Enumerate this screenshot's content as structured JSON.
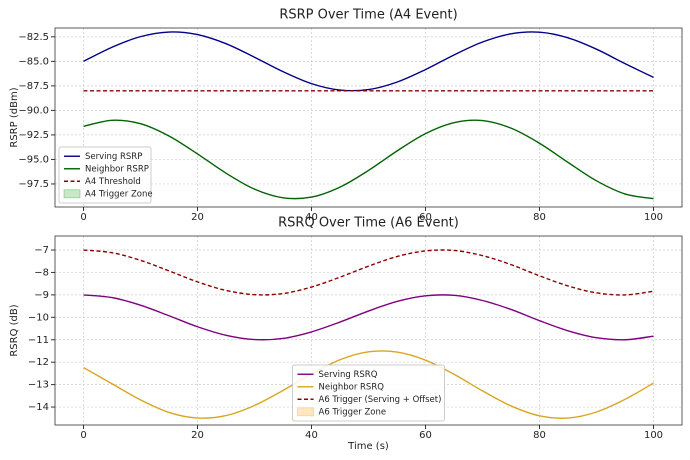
{
  "chart_data": [
    {
      "type": "line",
      "title": "RSRP Over Time (A4 Event)",
      "ylabel": "RSRP (dBm)",
      "x": [
        0,
        5,
        10,
        15,
        20,
        25,
        30,
        35,
        40,
        45,
        50,
        55,
        60,
        65,
        70,
        75,
        80,
        85,
        90,
        95,
        100
      ],
      "series": [
        {
          "name": "Serving RSRP",
          "color": "#00008b",
          "style": "solid",
          "values": [
            -85,
            -83.56,
            -82.48,
            -82.01,
            -82.27,
            -83.2,
            -84.58,
            -86.05,
            -87.27,
            -87.93,
            -87.88,
            -87.12,
            -85.84,
            -84.35,
            -83.03,
            -82.19,
            -82.03,
            -82.6,
            -83.76,
            -85.23,
            -86.63
          ]
        },
        {
          "name": "Neighbor RSRP",
          "color": "#006400",
          "style": "solid",
          "values": [
            -91.63,
            -91.01,
            -91.36,
            -92.61,
            -94.44,
            -96.4,
            -98.03,
            -98.91,
            -98.84,
            -97.82,
            -96.12,
            -94.14,
            -92.37,
            -91.25,
            -91.04,
            -91.81,
            -93.35,
            -95.3,
            -97.18,
            -98.52,
            -99
          ]
        },
        {
          "name": "A4 Threshold",
          "color": "#8b0000",
          "style": "dashed",
          "values": [
            -88,
            -88,
            -88,
            -88,
            -88,
            -88,
            -88,
            -88,
            -88,
            -88,
            -88,
            -88,
            -88,
            -88,
            -88,
            -88,
            -88,
            -88,
            -88,
            -88,
            -88
          ]
        }
      ],
      "zones": [
        {
          "name": "A4 Trigger Zone",
          "color": "#2ca02c"
        }
      ],
      "xlim": [
        -5,
        105
      ],
      "xticks": [
        0,
        20,
        40,
        60,
        80,
        100
      ],
      "ylim": [
        -99.85,
        -81.6
      ],
      "yticks": [
        {
          "value": -82.5,
          "label": "−82.5"
        },
        {
          "value": -85,
          "label": "−85.0"
        },
        {
          "value": -87.5,
          "label": "−87.5"
        },
        {
          "value": -90,
          "label": "−90.0"
        },
        {
          "value": -92.5,
          "label": "−92.5"
        },
        {
          "value": -95,
          "label": "−95.0"
        },
        {
          "value": -97.5,
          "label": "−97.5"
        }
      ],
      "grid": true,
      "legend": "lower left"
    },
    {
      "type": "line",
      "title": "RSRQ Over Time (A6 Event)",
      "ylabel": "RSRQ (dB)",
      "xlabel": "Time (s)",
      "x": [
        0,
        5,
        10,
        15,
        20,
        25,
        30,
        35,
        40,
        45,
        50,
        55,
        60,
        65,
        70,
        75,
        80,
        85,
        90,
        95,
        100
      ],
      "series": [
        {
          "name": "Serving RSRQ",
          "color": "#800080",
          "style": "solid",
          "values": [
            -9,
            -9.12,
            -9.46,
            -9.93,
            -10.42,
            -10.8,
            -10.99,
            -10.94,
            -10.65,
            -10.21,
            -9.72,
            -9.29,
            -9.04,
            -9.02,
            -9.25,
            -9.65,
            -10.15,
            -10.6,
            -10.91,
            -11,
            -10.84
          ]
        },
        {
          "name": "Neighbor RSRQ",
          "color": "#daa520",
          "style": "solid",
          "values": [
            -12.24,
            -12.96,
            -13.68,
            -14.24,
            -14.49,
            -14.38,
            -13.93,
            -13.26,
            -12.52,
            -11.89,
            -11.54,
            -11.55,
            -11.91,
            -12.54,
            -13.28,
            -13.95,
            -14.39,
            -14.49,
            -14.22,
            -13.66,
            -12.93
          ]
        },
        {
          "name": "A6 Trigger (Serving + Offset)",
          "color": "#8b0000",
          "style": "dashed",
          "values": [
            -7,
            -7.12,
            -7.46,
            -7.93,
            -8.42,
            -8.8,
            -8.99,
            -8.94,
            -8.65,
            -8.21,
            -7.72,
            -7.29,
            -7.04,
            -7.02,
            -7.25,
            -7.65,
            -8.15,
            -8.6,
            -8.91,
            -9,
            -8.84
          ]
        }
      ],
      "zones": [
        {
          "name": "A6 Trigger Zone",
          "color": "#ffa500"
        }
      ],
      "xlim": [
        -5,
        105
      ],
      "xticks": [
        0,
        20,
        40,
        60,
        80,
        100
      ],
      "ylim": [
        -14.8,
        -6.375
      ],
      "yticks": [
        {
          "value": -7,
          "label": "−7"
        },
        {
          "value": -8,
          "label": "−8"
        },
        {
          "value": -9,
          "label": "−9"
        },
        {
          "value": -10,
          "label": "−10"
        },
        {
          "value": -11,
          "label": "−11"
        },
        {
          "value": -12,
          "label": "−12"
        },
        {
          "value": -13,
          "label": "−13"
        },
        {
          "value": -14,
          "label": "−14"
        }
      ],
      "grid": true,
      "legend": "lower center"
    }
  ]
}
